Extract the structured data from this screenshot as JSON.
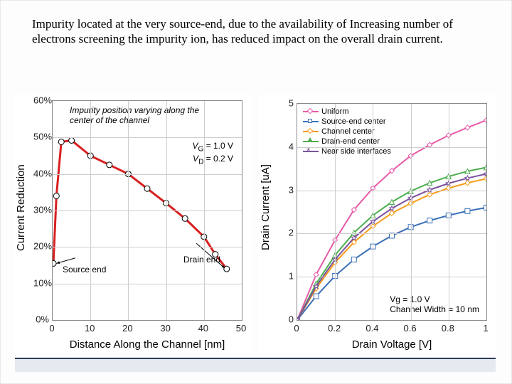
{
  "caption": "Impurity located at the very source-end, due to the availability of  Increasing number of electrons screening the impurity ion, has reduced impact on the overall drain current.",
  "left_chart": {
    "type": "line",
    "xlabel": "Distance Along the Channel [nm]",
    "ylabel": "Current Reduction",
    "xlim": [
      0,
      50
    ],
    "ylim": [
      0,
      60
    ],
    "xticks": [
      0,
      10,
      20,
      30,
      40,
      50
    ],
    "yticks": [
      0,
      10,
      20,
      30,
      40,
      50,
      60
    ],
    "ytick_labels": [
      "0%",
      "10%",
      "20%",
      "30%",
      "40%",
      "50%",
      "60%"
    ],
    "series": {
      "color": "#d8201f",
      "width": 3,
      "marker_fill": "#ffffff",
      "marker_stroke": "#000000",
      "marker_size": 8,
      "points": [
        [
          0.2,
          15.5
        ],
        [
          1.0,
          34.0
        ],
        [
          2.3,
          48.8
        ],
        [
          5.0,
          49.2
        ],
        [
          10.0,
          45.0
        ],
        [
          15.0,
          42.5
        ],
        [
          20.0,
          40.0
        ],
        [
          25.0,
          36.0
        ],
        [
          30.0,
          32.0
        ],
        [
          35.0,
          27.8
        ],
        [
          40.0,
          22.8
        ],
        [
          43.0,
          18.0
        ],
        [
          46.0,
          14.0
        ]
      ]
    },
    "grid_color": "#cdcdcd",
    "annotations": {
      "impurity_text": "Impurity position varying along the\ncenter of the channel",
      "vg_text": "VG = 1.0 V",
      "vd_text": "VD = 0.2 V",
      "source_end": "Source end",
      "drain_end": "Drain end",
      "arrow_color": "#000000"
    }
  },
  "right_chart": {
    "type": "line",
    "xlabel": "Drain Voltage [V]",
    "ylabel": "Drain Current [uA]",
    "xlim": [
      0,
      1
    ],
    "ylim": [
      0,
      5
    ],
    "xticks": [
      0,
      0.2,
      0.4,
      0.6,
      0.8,
      1
    ],
    "xtick_labels": [
      "0",
      "0.2",
      "0.4",
      "0.6",
      "0.8",
      "1"
    ],
    "yticks": [
      0,
      1,
      2,
      3,
      4,
      5
    ],
    "grid_color": "#cdcdcd",
    "legend": [
      {
        "label": "Uniform",
        "color": "#e85aa8",
        "marker": "diamond"
      },
      {
        "label": "Source-end center",
        "color": "#3a6fb7",
        "marker": "square"
      },
      {
        "label": "Channel center",
        "color": "#f59c1a",
        "marker": "diamond"
      },
      {
        "label": "Drain-end center",
        "color": "#4cae4f",
        "marker": "triangle"
      },
      {
        "label": "Near side interfaces",
        "color": "#7a529e",
        "marker": "star"
      }
    ],
    "corner_text": "Vg = 1.0 V\nChannel Width = 10 nm",
    "series": {
      "Uniform": [
        [
          0,
          0.0
        ],
        [
          0.1,
          1.05
        ],
        [
          0.2,
          1.85
        ],
        [
          0.3,
          2.55
        ],
        [
          0.4,
          3.05
        ],
        [
          0.5,
          3.45
        ],
        [
          0.6,
          3.8
        ],
        [
          0.7,
          4.05
        ],
        [
          0.8,
          4.27
        ],
        [
          0.9,
          4.45
        ],
        [
          1.0,
          4.62
        ]
      ],
      "Source-end center": [
        [
          0,
          0.0
        ],
        [
          0.1,
          0.55
        ],
        [
          0.2,
          1.02
        ],
        [
          0.3,
          1.4
        ],
        [
          0.4,
          1.7
        ],
        [
          0.5,
          1.95
        ],
        [
          0.6,
          2.15
        ],
        [
          0.7,
          2.3
        ],
        [
          0.8,
          2.42
        ],
        [
          0.9,
          2.52
        ],
        [
          1.0,
          2.6
        ]
      ],
      "Channel center": [
        [
          0,
          0.0
        ],
        [
          0.1,
          0.73
        ],
        [
          0.2,
          1.33
        ],
        [
          0.3,
          1.8
        ],
        [
          0.4,
          2.17
        ],
        [
          0.5,
          2.47
        ],
        [
          0.6,
          2.7
        ],
        [
          0.7,
          2.9
        ],
        [
          0.8,
          3.05
        ],
        [
          0.9,
          3.17
        ],
        [
          1.0,
          3.27
        ]
      ],
      "Drain-end center": [
        [
          0,
          0.0
        ],
        [
          0.1,
          0.84
        ],
        [
          0.2,
          1.5
        ],
        [
          0.3,
          2.02
        ],
        [
          0.4,
          2.42
        ],
        [
          0.5,
          2.73
        ],
        [
          0.6,
          2.98
        ],
        [
          0.7,
          3.17
        ],
        [
          0.8,
          3.32
        ],
        [
          0.9,
          3.44
        ],
        [
          1.0,
          3.53
        ]
      ],
      "Near side interfaces": [
        [
          0,
          0.0
        ],
        [
          0.1,
          0.78
        ],
        [
          0.2,
          1.4
        ],
        [
          0.3,
          1.9
        ],
        [
          0.4,
          2.28
        ],
        [
          0.5,
          2.58
        ],
        [
          0.6,
          2.82
        ],
        [
          0.7,
          3.01
        ],
        [
          0.8,
          3.16
        ],
        [
          0.9,
          3.28
        ],
        [
          1.0,
          3.38
        ]
      ]
    }
  }
}
